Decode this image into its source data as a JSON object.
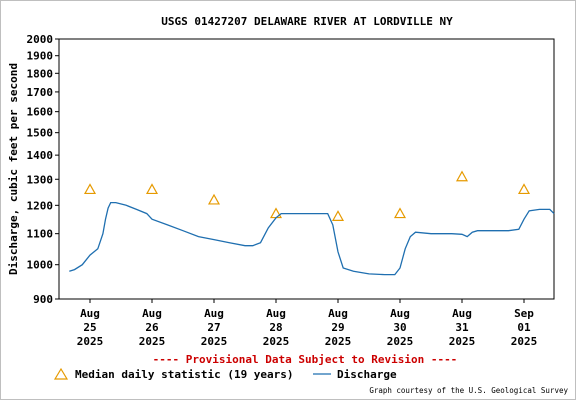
{
  "chart_data": {
    "type": "line",
    "title": "USGS 01427207 DELAWARE RIVER AT LORDVILLE NY",
    "ylabel": "Discharge, cubic feet per second",
    "y_scale": "log",
    "ylim": [
      900,
      2000
    ],
    "y_ticks": [
      900,
      1000,
      1100,
      1200,
      1300,
      1400,
      1500,
      1600,
      1700,
      1800,
      1900,
      2000
    ],
    "x_range": [
      "2025-08-25T00:00",
      "2025-09-01T00:00"
    ],
    "x_ticks": [
      {
        "month": "Aug",
        "day": "25",
        "year": "2025"
      },
      {
        "month": "Aug",
        "day": "26",
        "year": "2025"
      },
      {
        "month": "Aug",
        "day": "27",
        "year": "2025"
      },
      {
        "month": "Aug",
        "day": "28",
        "year": "2025"
      },
      {
        "month": "Aug",
        "day": "29",
        "year": "2025"
      },
      {
        "month": "Aug",
        "day": "30",
        "year": "2025"
      },
      {
        "month": "Aug",
        "day": "31",
        "year": "2025"
      },
      {
        "month": "Sep",
        "day": "01",
        "year": "2025"
      }
    ],
    "grid": true,
    "notice": "---- Provisional Data Subject to Revision ----",
    "legend": {
      "median_label": "Median daily statistic (19 years)",
      "discharge_label": "Discharge"
    },
    "credit": "Graph courtesy of the U.S. Geological Survey",
    "colors": {
      "discharge": "#1f6fb0",
      "median": "#e69a00",
      "notice": "#cc0000",
      "grid": "#c8c8c8",
      "text": "#000000"
    },
    "median_series": {
      "name": "Median daily statistic (19 years)",
      "points": [
        {
          "x": "2025-08-25T00:00",
          "y": 1260
        },
        {
          "x": "2025-08-26T00:00",
          "y": 1260
        },
        {
          "x": "2025-08-27T00:00",
          "y": 1220
        },
        {
          "x": "2025-08-28T00:00",
          "y": 1170
        },
        {
          "x": "2025-08-29T00:00",
          "y": 1160
        },
        {
          "x": "2025-08-30T00:00",
          "y": 1170
        },
        {
          "x": "2025-08-31T00:00",
          "y": 1310
        },
        {
          "x": "2025-09-01T00:00",
          "y": 1260
        }
      ]
    },
    "discharge_series": {
      "name": "Discharge",
      "points": [
        {
          "x": "2025-08-24T16:00",
          "y": 980
        },
        {
          "x": "2025-08-24T18:00",
          "y": 985
        },
        {
          "x": "2025-08-24T21:00",
          "y": 1000
        },
        {
          "x": "2025-08-25T00:00",
          "y": 1030
        },
        {
          "x": "2025-08-25T03:00",
          "y": 1050
        },
        {
          "x": "2025-08-25T05:00",
          "y": 1100
        },
        {
          "x": "2025-08-25T06:00",
          "y": 1150
        },
        {
          "x": "2025-08-25T07:00",
          "y": 1190
        },
        {
          "x": "2025-08-25T08:00",
          "y": 1210
        },
        {
          "x": "2025-08-25T10:00",
          "y": 1210
        },
        {
          "x": "2025-08-25T14:00",
          "y": 1200
        },
        {
          "x": "2025-08-25T18:00",
          "y": 1185
        },
        {
          "x": "2025-08-25T22:00",
          "y": 1170
        },
        {
          "x": "2025-08-26T00:00",
          "y": 1150
        },
        {
          "x": "2025-08-26T06:00",
          "y": 1130
        },
        {
          "x": "2025-08-26T12:00",
          "y": 1110
        },
        {
          "x": "2025-08-26T18:00",
          "y": 1090
        },
        {
          "x": "2025-08-27T00:00",
          "y": 1080
        },
        {
          "x": "2025-08-27T06:00",
          "y": 1070
        },
        {
          "x": "2025-08-27T12:00",
          "y": 1060
        },
        {
          "x": "2025-08-27T15:00",
          "y": 1060
        },
        {
          "x": "2025-08-27T18:00",
          "y": 1070
        },
        {
          "x": "2025-08-27T21:00",
          "y": 1120
        },
        {
          "x": "2025-08-28T00:00",
          "y": 1155
        },
        {
          "x": "2025-08-28T02:00",
          "y": 1170
        },
        {
          "x": "2025-08-28T12:00",
          "y": 1170
        },
        {
          "x": "2025-08-28T20:00",
          "y": 1170
        },
        {
          "x": "2025-08-28T22:00",
          "y": 1130
        },
        {
          "x": "2025-08-29T00:00",
          "y": 1040
        },
        {
          "x": "2025-08-29T02:00",
          "y": 990
        },
        {
          "x": "2025-08-29T06:00",
          "y": 980
        },
        {
          "x": "2025-08-29T12:00",
          "y": 972
        },
        {
          "x": "2025-08-29T18:00",
          "y": 970
        },
        {
          "x": "2025-08-29T22:00",
          "y": 970
        },
        {
          "x": "2025-08-30T00:00",
          "y": 990
        },
        {
          "x": "2025-08-30T02:00",
          "y": 1050
        },
        {
          "x": "2025-08-30T04:00",
          "y": 1090
        },
        {
          "x": "2025-08-30T06:00",
          "y": 1105
        },
        {
          "x": "2025-08-30T12:00",
          "y": 1100
        },
        {
          "x": "2025-08-30T20:00",
          "y": 1100
        },
        {
          "x": "2025-08-31T00:00",
          "y": 1098
        },
        {
          "x": "2025-08-31T02:00",
          "y": 1090
        },
        {
          "x": "2025-08-31T04:00",
          "y": 1105
        },
        {
          "x": "2025-08-31T06:00",
          "y": 1110
        },
        {
          "x": "2025-08-31T12:00",
          "y": 1110
        },
        {
          "x": "2025-08-31T18:00",
          "y": 1110
        },
        {
          "x": "2025-08-31T22:00",
          "y": 1115
        },
        {
          "x": "2025-09-01T00:00",
          "y": 1150
        },
        {
          "x": "2025-09-01T02:00",
          "y": 1180
        },
        {
          "x": "2025-09-01T06:00",
          "y": 1185
        },
        {
          "x": "2025-09-01T10:00",
          "y": 1185
        },
        {
          "x": "2025-09-01T12:00",
          "y": 1170
        },
        {
          "x": "2025-09-01T16:00",
          "y": 1170
        }
      ]
    }
  }
}
